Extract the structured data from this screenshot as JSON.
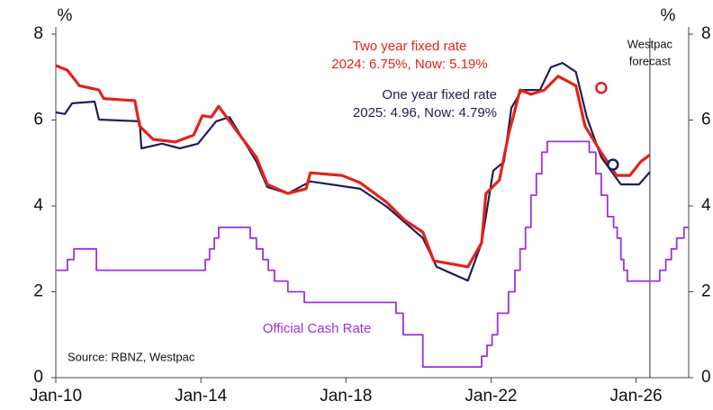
{
  "chart_data": {
    "type": "line",
    "y_label": "%",
    "y2_label": "%",
    "xlim": [
      2010,
      2027.45
    ],
    "xticks": [
      {
        "value": 2010,
        "label": "Jan-10"
      },
      {
        "value": 2014,
        "label": "Jan-14"
      },
      {
        "value": 2018,
        "label": "Jan-18"
      },
      {
        "value": 2022,
        "label": "Jan-22"
      },
      {
        "value": 2026,
        "label": "Jan-26"
      }
    ],
    "ylim": [
      0,
      8
    ],
    "yticks": [
      0,
      2,
      4,
      6,
      8
    ],
    "y2lim": [
      0,
      8
    ],
    "y2ticks": [
      0,
      2,
      4,
      6,
      8
    ],
    "series": [
      {
        "name": "Official Cash Rate",
        "color": "#a12fdc",
        "step": true,
        "x": [
          2010.0,
          2010.32,
          2010.5,
          2011.12,
          2014.12,
          2014.24,
          2014.37,
          2014.49,
          2015.36,
          2015.53,
          2015.71,
          2015.86,
          2016.03,
          2016.4,
          2016.85,
          2019.38,
          2019.58,
          2020.12,
          2021.74,
          2021.89,
          2022.03,
          2022.18,
          2022.48,
          2022.66,
          2022.8,
          2022.95,
          2023.1,
          2023.25,
          2023.4,
          2023.55,
          2024.71,
          2024.89,
          2025.04,
          2025.21,
          2025.38,
          2025.48,
          2025.58,
          2025.66,
          2025.76,
          2026.65,
          2026.82,
          2026.97,
          2027.12,
          2027.32
        ],
        "values": [
          2.5,
          2.75,
          3.0,
          2.5,
          2.75,
          3.0,
          3.25,
          3.5,
          3.25,
          3.0,
          2.75,
          2.5,
          2.25,
          2.0,
          1.75,
          1.5,
          1.0,
          0.25,
          0.5,
          0.75,
          1.0,
          1.5,
          2.0,
          2.5,
          3.0,
          3.5,
          4.25,
          4.75,
          5.25,
          5.5,
          5.25,
          4.75,
          4.25,
          3.75,
          3.5,
          3.25,
          2.75,
          2.5,
          2.25,
          2.5,
          2.75,
          3.0,
          3.25,
          3.5
        ]
      },
      {
        "name": "One year fixed rate",
        "color": "#1e1e5a",
        "x": [
          2010.0,
          2010.25,
          2010.45,
          2011.07,
          2011.19,
          2012.31,
          2012.36,
          2012.93,
          2013.42,
          2013.92,
          2014.42,
          2014.79,
          2015.16,
          2015.53,
          2015.83,
          2016.4,
          2017.02,
          2018.39,
          2019.13,
          2020.12,
          2020.5,
          2021.36,
          2021.74,
          2022.06,
          2022.36,
          2022.56,
          2022.85,
          2023.35,
          2023.65,
          2023.97,
          2024.34,
          2024.64,
          2025.04,
          2025.58,
          2026.08,
          2026.38
        ],
        "values": [
          6.18,
          6.14,
          6.39,
          6.43,
          6.01,
          5.97,
          5.34,
          5.45,
          5.34,
          5.45,
          5.97,
          6.07,
          5.55,
          5.03,
          4.44,
          4.29,
          4.57,
          4.4,
          3.98,
          3.25,
          2.58,
          2.26,
          3.14,
          4.82,
          5.03,
          6.28,
          6.7,
          6.7,
          7.23,
          7.33,
          7.12,
          6.07,
          5.13,
          4.5,
          4.5,
          4.79
        ]
      },
      {
        "name": "Two year fixed rate",
        "color": "#e2231a",
        "x": [
          2010.0,
          2010.32,
          2010.65,
          2011.19,
          2011.32,
          2012.18,
          2012.31,
          2012.68,
          2013.3,
          2013.8,
          2014.04,
          2014.29,
          2014.49,
          2014.79,
          2015.16,
          2015.53,
          2015.83,
          2016.4,
          2016.9,
          2017.02,
          2017.89,
          2018.39,
          2019.13,
          2019.63,
          2020.12,
          2020.42,
          2021.36,
          2021.74,
          2021.86,
          2022.23,
          2022.48,
          2022.8,
          2023.1,
          2023.47,
          2023.85,
          2024.34,
          2024.59,
          2025.04,
          2025.46,
          2025.83,
          2026.13,
          2026.38
        ],
        "values": [
          7.27,
          7.16,
          6.8,
          6.7,
          6.5,
          6.45,
          5.86,
          5.55,
          5.49,
          5.65,
          6.1,
          6.07,
          6.32,
          5.97,
          5.55,
          5.13,
          4.5,
          4.29,
          4.4,
          4.77,
          4.71,
          4.54,
          4.08,
          3.66,
          3.39,
          2.72,
          2.58,
          3.14,
          4.29,
          4.6,
          5.65,
          6.7,
          6.6,
          6.7,
          7.02,
          6.8,
          5.86,
          5.24,
          4.71,
          4.71,
          5.03,
          5.19
        ]
      }
    ],
    "markers": [
      {
        "x": 2025.04,
        "y": 6.75,
        "color": "#e2231a"
      },
      {
        "x": 2025.36,
        "y": 4.96,
        "color": "#1e1e5a"
      }
    ],
    "annotations": [
      {
        "lines": [
          "Two year fixed rate",
          "2024: 6.75%, Now: 5.19%"
        ],
        "color": "#e2231a"
      },
      {
        "lines": [
          "One year fixed rate",
          "2025: 4.96, Now: 4.79%"
        ],
        "color": "#1e1e5a"
      },
      {
        "lines": [
          "Official Cash Rate"
        ],
        "color": "#a12fdc"
      },
      {
        "lines": [
          "Source: RBNZ, Westpac"
        ],
        "color": "#111111"
      }
    ],
    "forecast_line": {
      "x": 2026.38,
      "lines": [
        "Westpac",
        "forecast"
      ]
    }
  }
}
